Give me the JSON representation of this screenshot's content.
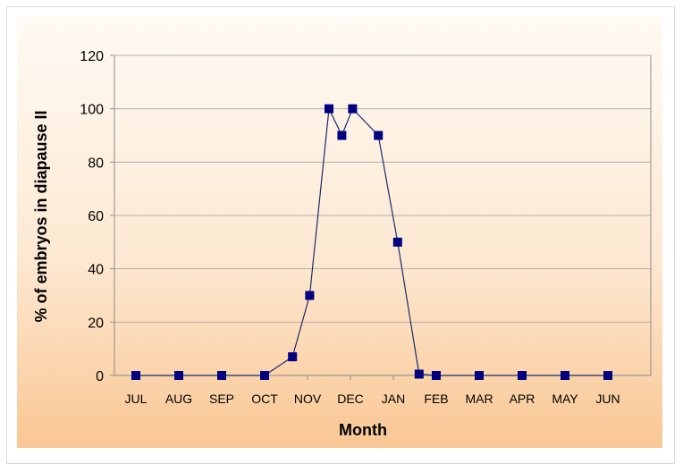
{
  "chart_data": {
    "type": "line",
    "title": "",
    "xlabel": "Month",
    "ylabel": "% of embryos in diapause II",
    "categories": [
      "JUL",
      "AUG",
      "SEP",
      "OCT",
      "NOV",
      "DEC",
      "JAN",
      "FEB",
      "MAR",
      "APR",
      "MAY",
      "JUN"
    ],
    "ylim": [
      0,
      120
    ],
    "yticks": [
      "0",
      "20",
      "40",
      "60",
      "80",
      "100",
      "120"
    ],
    "grid": true,
    "legend": "none",
    "series": [
      {
        "color": "#000080",
        "marker": "square",
        "points": [
          {
            "x": 0.0,
            "y": 0
          },
          {
            "x": 1.0,
            "y": 0
          },
          {
            "x": 2.0,
            "y": 0
          },
          {
            "x": 3.0,
            "y": 0
          },
          {
            "x": 3.65,
            "y": 7
          },
          {
            "x": 4.05,
            "y": 30
          },
          {
            "x": 4.5,
            "y": 100
          },
          {
            "x": 4.8,
            "y": 90
          },
          {
            "x": 5.05,
            "y": 100
          },
          {
            "x": 5.65,
            "y": 90
          },
          {
            "x": 6.1,
            "y": 50
          },
          {
            "x": 6.6,
            "y": 0.5
          },
          {
            "x": 7.0,
            "y": 0
          },
          {
            "x": 8.0,
            "y": 0
          },
          {
            "x": 9.0,
            "y": 0
          },
          {
            "x": 10.0,
            "y": 0
          },
          {
            "x": 11.0,
            "y": 0
          }
        ]
      }
    ]
  }
}
